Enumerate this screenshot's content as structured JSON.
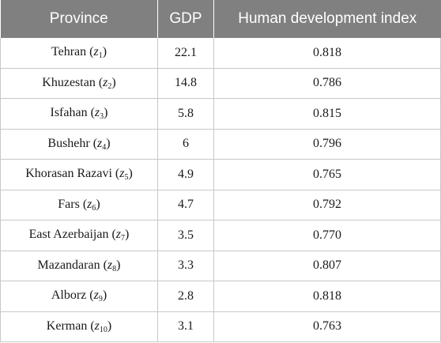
{
  "headers": [
    "Province",
    "GDP",
    "Human development index"
  ],
  "rows": [
    {
      "province": "Tehran",
      "z": "1",
      "gdp": "22.1",
      "hdi": "0.818"
    },
    {
      "province": "Khuzestan",
      "z": "2",
      "gdp": "14.8",
      "hdi": "0.786"
    },
    {
      "province": "Isfahan",
      "z": "3",
      "gdp": "5.8",
      "hdi": "0.815"
    },
    {
      "province": "Bushehr",
      "z": "4",
      "gdp": "6",
      "hdi": "0.796"
    },
    {
      "province": "Khorasan Razavi",
      "z": "5",
      "gdp": "4.9",
      "hdi": "0.765"
    },
    {
      "province": "Fars",
      "z": "6",
      "gdp": "4.7",
      "hdi": "0.792"
    },
    {
      "province": "East Azerbaijan",
      "z": "7",
      "gdp": "3.5",
      "hdi": "0.770"
    },
    {
      "province": "Mazandaran",
      "z": "8",
      "gdp": "3.3",
      "hdi": "0.807"
    },
    {
      "province": "Alborz",
      "z": "9",
      "gdp": "2.8",
      "hdi": "0.818"
    },
    {
      "province": "Kerman",
      "z": "10",
      "gdp": "3.1",
      "hdi": "0.763"
    }
  ],
  "colors": {
    "header_bg": "#808080",
    "header_text": "#ffffff",
    "border": "#c8c8c8"
  }
}
